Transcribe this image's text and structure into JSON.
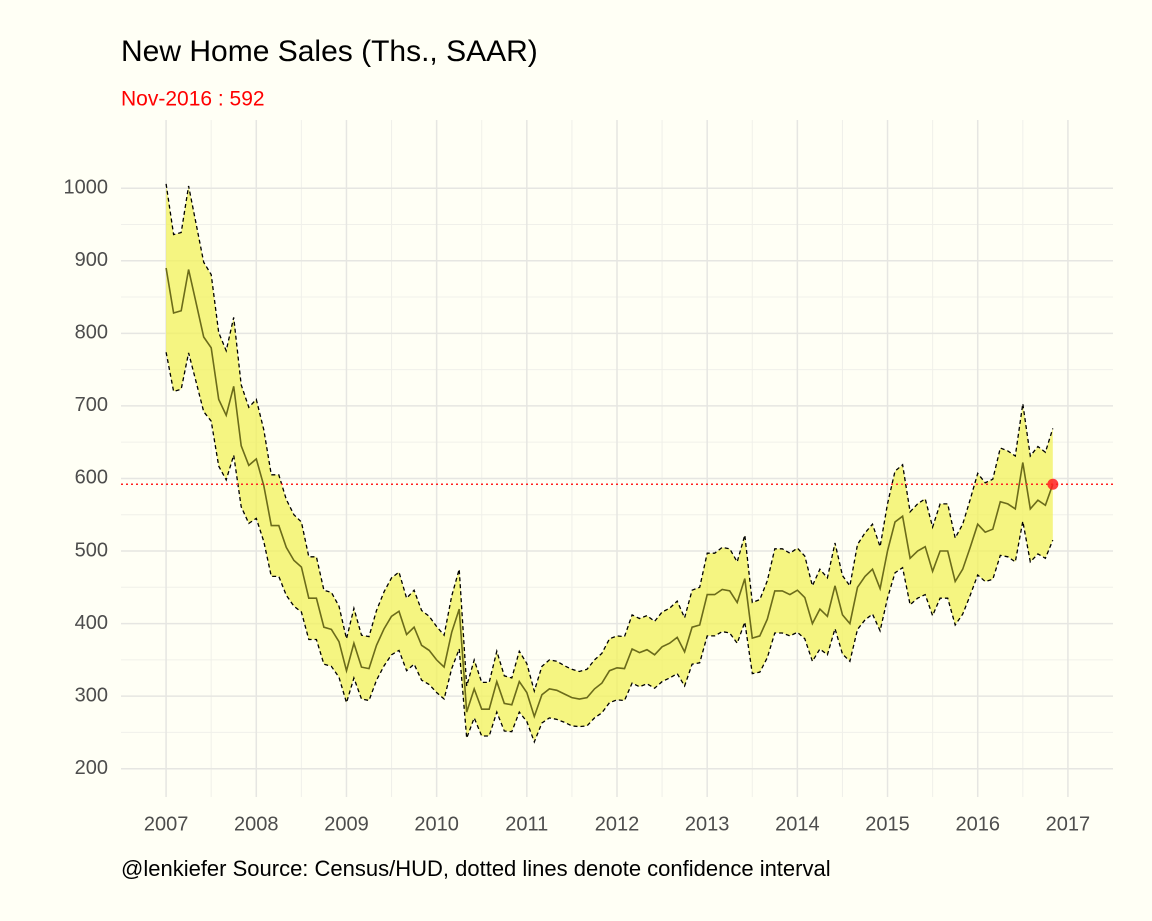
{
  "chart_data": {
    "type": "line",
    "title": "New Home Sales (Ths., SAAR)",
    "subtitle": "Nov-2016 : 592",
    "caption": "@lenkiefer Source: Census/HUD, dotted lines denote confidence interval",
    "x": [
      2007,
      2007.083,
      2007.167,
      2007.25,
      2007.333,
      2007.417,
      2007.5,
      2007.583,
      2007.667,
      2007.75,
      2007.833,
      2007.917,
      2008,
      2008.083,
      2008.167,
      2008.25,
      2008.333,
      2008.417,
      2008.5,
      2008.583,
      2008.667,
      2008.75,
      2008.833,
      2008.917,
      2009,
      2009.083,
      2009.167,
      2009.25,
      2009.333,
      2009.417,
      2009.5,
      2009.583,
      2009.667,
      2009.75,
      2009.833,
      2009.917,
      2010,
      2010.083,
      2010.167,
      2010.25,
      2010.333,
      2010.417,
      2010.5,
      2010.583,
      2010.667,
      2010.75,
      2010.833,
      2010.917,
      2011,
      2011.083,
      2011.167,
      2011.25,
      2011.333,
      2011.417,
      2011.5,
      2011.583,
      2011.667,
      2011.75,
      2011.833,
      2011.917,
      2012,
      2012.083,
      2012.167,
      2012.25,
      2012.333,
      2012.417,
      2012.5,
      2012.583,
      2012.667,
      2012.75,
      2012.833,
      2012.917,
      2013,
      2013.083,
      2013.167,
      2013.25,
      2013.333,
      2013.417,
      2013.5,
      2013.583,
      2013.667,
      2013.75,
      2013.833,
      2013.917,
      2014,
      2014.083,
      2014.167,
      2014.25,
      2014.333,
      2014.417,
      2014.5,
      2014.583,
      2014.667,
      2014.75,
      2014.833,
      2014.917,
      2015,
      2015.083,
      2015.167,
      2015.25,
      2015.333,
      2015.417,
      2015.5,
      2015.583,
      2015.667,
      2015.75,
      2015.833,
      2015.917,
      2016,
      2016.083,
      2016.167,
      2016.25,
      2016.333,
      2016.417,
      2016.5,
      2016.583,
      2016.667,
      2016.75,
      2016.833
    ],
    "values": [
      890,
      828,
      831,
      888,
      842,
      795,
      780,
      709,
      687,
      727,
      645,
      618,
      627,
      590,
      535,
      535,
      505,
      487,
      478,
      435,
      435,
      395,
      392,
      375,
      335,
      373,
      340,
      338,
      370,
      393,
      410,
      417,
      385,
      395,
      370,
      363,
      350,
      340,
      388,
      420,
      278,
      310,
      282,
      282,
      320,
      290,
      288,
      320,
      305,
      272,
      302,
      310,
      308,
      303,
      298,
      296,
      298,
      310,
      318,
      335,
      339,
      338,
      365,
      360,
      364,
      357,
      368,
      373,
      381,
      361,
      395,
      398,
      440,
      440,
      447,
      445,
      429,
      462,
      380,
      383,
      406,
      445,
      445,
      440,
      446,
      436,
      400,
      420,
      410,
      452,
      412,
      400,
      450,
      465,
      475,
      448,
      500,
      540,
      548,
      490,
      500,
      506,
      472,
      500,
      500,
      458,
      475,
      505,
      537,
      526,
      530,
      568,
      565,
      558,
      622,
      558,
      570,
      563,
      592
    ],
    "upper": [
      1006,
      936,
      939,
      1003,
      951,
      898,
      881,
      801,
      776,
      822,
      729,
      698,
      709,
      667,
      605,
      605,
      571,
      550,
      540,
      492,
      492,
      446,
      443,
      424,
      379,
      421,
      384,
      382,
      418,
      444,
      463,
      471,
      435,
      446,
      418,
      410,
      396,
      384,
      438,
      475,
      314,
      350,
      319,
      319,
      362,
      328,
      325,
      362,
      345,
      307,
      341,
      350,
      348,
      342,
      337,
      334,
      337,
      350,
      359,
      379,
      383,
      382,
      412,
      407,
      411,
      403,
      416,
      421,
      431,
      408,
      446,
      450,
      497,
      497,
      505,
      503,
      485,
      522,
      429,
      433,
      459,
      503,
      503,
      497,
      504,
      493,
      452,
      475,
      463,
      511,
      466,
      452,
      509,
      525,
      537,
      506,
      565,
      610,
      619,
      554,
      565,
      572,
      533,
      565,
      565,
      518,
      537,
      571,
      607,
      594,
      599,
      642,
      638,
      631,
      703,
      631,
      644,
      636,
      669
    ],
    "lower": [
      774,
      720,
      723,
      773,
      733,
      692,
      679,
      617,
      598,
      632,
      561,
      538,
      545,
      513,
      465,
      465,
      439,
      424,
      416,
      378,
      378,
      344,
      341,
      326,
      291,
      325,
      296,
      294,
      322,
      342,
      357,
      363,
      335,
      344,
      322,
      316,
      305,
      296,
      338,
      365,
      242,
      270,
      245,
      245,
      278,
      252,
      251,
      278,
      265,
      237,
      263,
      270,
      268,
      264,
      259,
      258,
      259,
      270,
      277,
      291,
      295,
      294,
      318,
      313,
      317,
      311,
      320,
      325,
      331,
      314,
      344,
      346,
      383,
      383,
      389,
      387,
      373,
      402,
      331,
      333,
      353,
      387,
      387,
      383,
      388,
      379,
      348,
      365,
      357,
      393,
      358,
      348,
      392,
      405,
      413,
      390,
      435,
      470,
      477,
      426,
      435,
      440,
      411,
      435,
      435,
      398,
      413,
      439,
      467,
      458,
      461,
      494,
      492,
      485,
      541,
      485,
      496,
      490,
      515
    ],
    "line_color": "#6b6b1a",
    "band_color": "#f2f25a",
    "highlight_color": "#ff2020",
    "reference_line": 592,
    "xlim": [
      2006.5,
      2017.5
    ],
    "ylim": [
      161,
      1094
    ],
    "xticks": [
      2007,
      2008,
      2009,
      2010,
      2011,
      2012,
      2013,
      2014,
      2015,
      2016,
      2017
    ],
    "yticks": [
      200,
      300,
      400,
      500,
      600,
      700,
      800,
      900,
      1000
    ],
    "grid": true
  }
}
